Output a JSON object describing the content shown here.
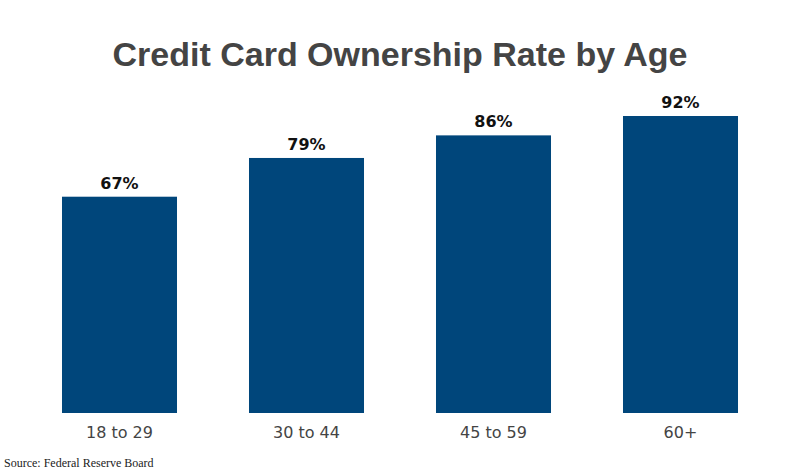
{
  "chart_data": {
    "type": "bar",
    "title": "Credit Card Ownership Rate by Age",
    "categories": [
      "18 to 29",
      "30 to 44",
      "45 to 59",
      "60+"
    ],
    "values": [
      67,
      79,
      86,
      92
    ],
    "value_labels": [
      "67%",
      "79%",
      "86%",
      "92%"
    ],
    "data_labels": true,
    "color": "#00467b",
    "ylim": [
      0,
      100
    ],
    "tick_labels": "x",
    "grid": false,
    "source": "Source: Federal Reserve Board"
  }
}
